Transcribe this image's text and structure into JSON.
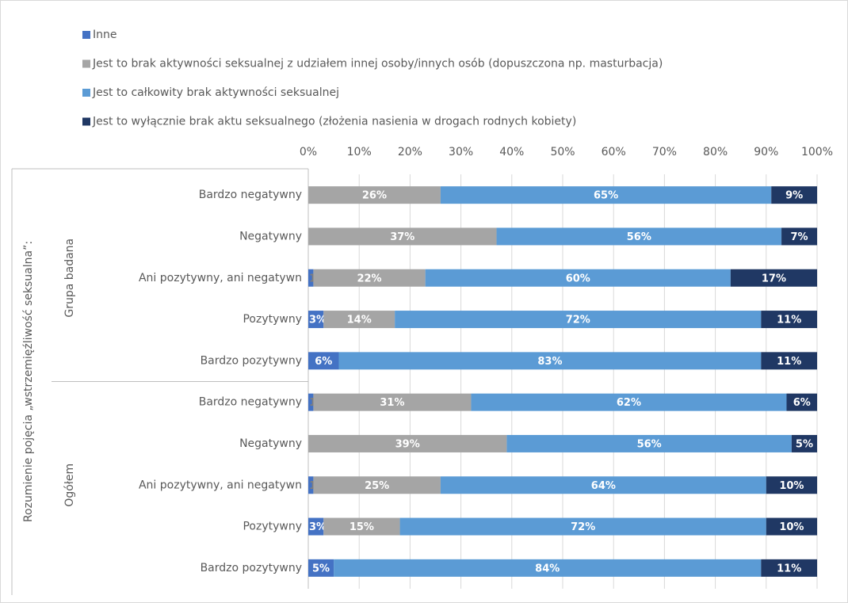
{
  "chart_data": {
    "type": "bar",
    "orientation": "horizontal",
    "stacked": true,
    "y_label": "Rozumienie pojęcia „wstrzemięźliwość seksualna”:",
    "groups": [
      "Grupa badana",
      "Ogółem"
    ],
    "categories": [
      "Bardzo negatywny",
      "Negatywny",
      "Ani pozytywny, ani negatywn",
      "Pozytywny",
      "Bardzo pozytywny",
      "Bardzo negatywny",
      "Negatywny",
      "Ani pozytywny, ani negatywn",
      "Pozytywny",
      "Bardzo pozytywny"
    ],
    "series": [
      {
        "name": "Inne",
        "color": "#4472c4",
        "values": [
          null,
          null,
          1,
          3,
          6,
          1,
          null,
          1,
          3,
          5
        ],
        "value_labels": [
          null,
          null,
          "1%",
          "3%",
          "6%",
          "1%",
          null,
          "1%",
          "3%",
          "5%"
        ]
      },
      {
        "name": "Jest to brak aktywności seksualnej z udziałem innej osoby/innych osób (dopuszczona np. masturbacja)",
        "color": "#a5a5a5",
        "values": [
          26,
          37,
          22,
          14,
          null,
          31,
          39,
          25,
          15,
          null
        ],
        "value_labels": [
          "26%",
          "37%",
          "22%",
          "14%",
          null,
          "31%",
          "39%",
          "25%",
          "15%",
          null
        ]
      },
      {
        "name": "Jest to całkowity brak aktywności seksualnej",
        "color": "#5b9bd5",
        "values": [
          65,
          56,
          60,
          72,
          83,
          62,
          56,
          64,
          72,
          84
        ],
        "value_labels": [
          "65%",
          "56%",
          "60%",
          "72%",
          "83%",
          "62%",
          "56%",
          "64%",
          "72%",
          "84%"
        ]
      },
      {
        "name": "Jest to wyłącznie brak aktu seksualnego (złożenia nasienia w drogach rodnych kobiety)",
        "color": "#203864",
        "values": [
          9,
          7,
          17,
          11,
          11,
          6,
          5,
          10,
          10,
          11
        ],
        "value_labels": [
          "9%",
          "7%",
          "17%",
          "11%",
          "11%",
          "6%",
          "5%",
          "10%",
          "10%",
          "11%"
        ]
      }
    ],
    "xlim": [
      0,
      100
    ],
    "xticks": [
      {
        "value": 0,
        "label": "0%"
      },
      {
        "value": 10,
        "label": "10%"
      },
      {
        "value": 20,
        "label": "20%"
      },
      {
        "value": 30,
        "label": "30%"
      },
      {
        "value": 40,
        "label": "40%"
      },
      {
        "value": 50,
        "label": "50%"
      },
      {
        "value": 60,
        "label": "60%"
      },
      {
        "value": 70,
        "label": "70%"
      },
      {
        "value": 80,
        "label": "80%"
      },
      {
        "value": 90,
        "label": "90%"
      },
      {
        "value": 100,
        "label": "100%"
      }
    ],
    "grid": true,
    "legend": "top-left"
  }
}
